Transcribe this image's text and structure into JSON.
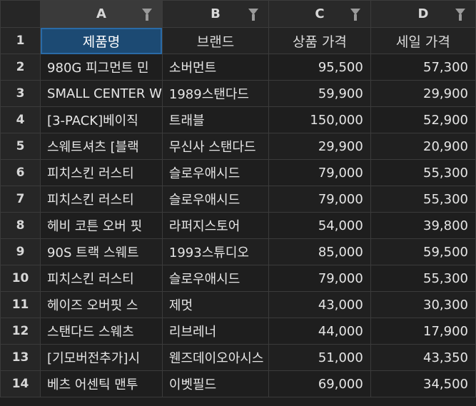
{
  "columns": [
    {
      "letter": "A"
    },
    {
      "letter": "B"
    },
    {
      "letter": "C"
    },
    {
      "letter": "D"
    }
  ],
  "header_row": {
    "row": "1",
    "cells": [
      "제품명",
      "브랜드",
      "상품 가격",
      "세일 가격"
    ]
  },
  "rows": [
    {
      "row": "2",
      "product": "980G 피그먼트 민",
      "brand": "소버먼트",
      "price": "95,500",
      "sale": "57,300"
    },
    {
      "row": "3",
      "product": "SMALL CENTER W",
      "brand": "1989스탠다드",
      "price": "59,900",
      "sale": "29,900"
    },
    {
      "row": "4",
      "product": "[3-PACK]베이직",
      "brand": "트래블",
      "price": "150,000",
      "sale": "52,900"
    },
    {
      "row": "5",
      "product": "스웨트셔츠 [블랙",
      "brand": "무신사 스탠다드",
      "price": "29,900",
      "sale": "20,900"
    },
    {
      "row": "6",
      "product": "피치스킨 러스티",
      "brand": "슬로우애시드",
      "price": "79,000",
      "sale": "55,300"
    },
    {
      "row": "7",
      "product": "피치스킨 러스티",
      "brand": "슬로우애시드",
      "price": "79,000",
      "sale": "55,300"
    },
    {
      "row": "8",
      "product": "헤비 코튼 오버 핏",
      "brand": "라퍼지스토어",
      "price": "54,000",
      "sale": "39,800"
    },
    {
      "row": "9",
      "product": "90S 트랙 스웨트",
      "brand": "1993스튜디오",
      "price": "85,000",
      "sale": "59,500"
    },
    {
      "row": "10",
      "product": "피치스킨 러스티",
      "brand": "슬로우애시드",
      "price": "79,000",
      "sale": "55,300"
    },
    {
      "row": "11",
      "product": "헤이즈 오버핏 스",
      "brand": "제멋",
      "price": "43,000",
      "sale": "30,300"
    },
    {
      "row": "12",
      "product": "스탠다드 스웨츠",
      "brand": "리브레너",
      "price": "44,000",
      "sale": "17,900"
    },
    {
      "row": "13",
      "product": "[기모버전추가]시",
      "brand": "웬즈데이오아시스",
      "price": "51,000",
      "sale": "43,350"
    },
    {
      "row": "14",
      "product": "베츠 어센틱 맨투",
      "brand": "이벳필드",
      "price": "69,000",
      "sale": "34,500"
    }
  ],
  "icons": {
    "filter": "filter-funnel-icon"
  },
  "colors": {
    "background": "#1e1e1e",
    "header": "#292929",
    "active_cell": "#1c4a73",
    "gridline": "#3b3b3b"
  }
}
